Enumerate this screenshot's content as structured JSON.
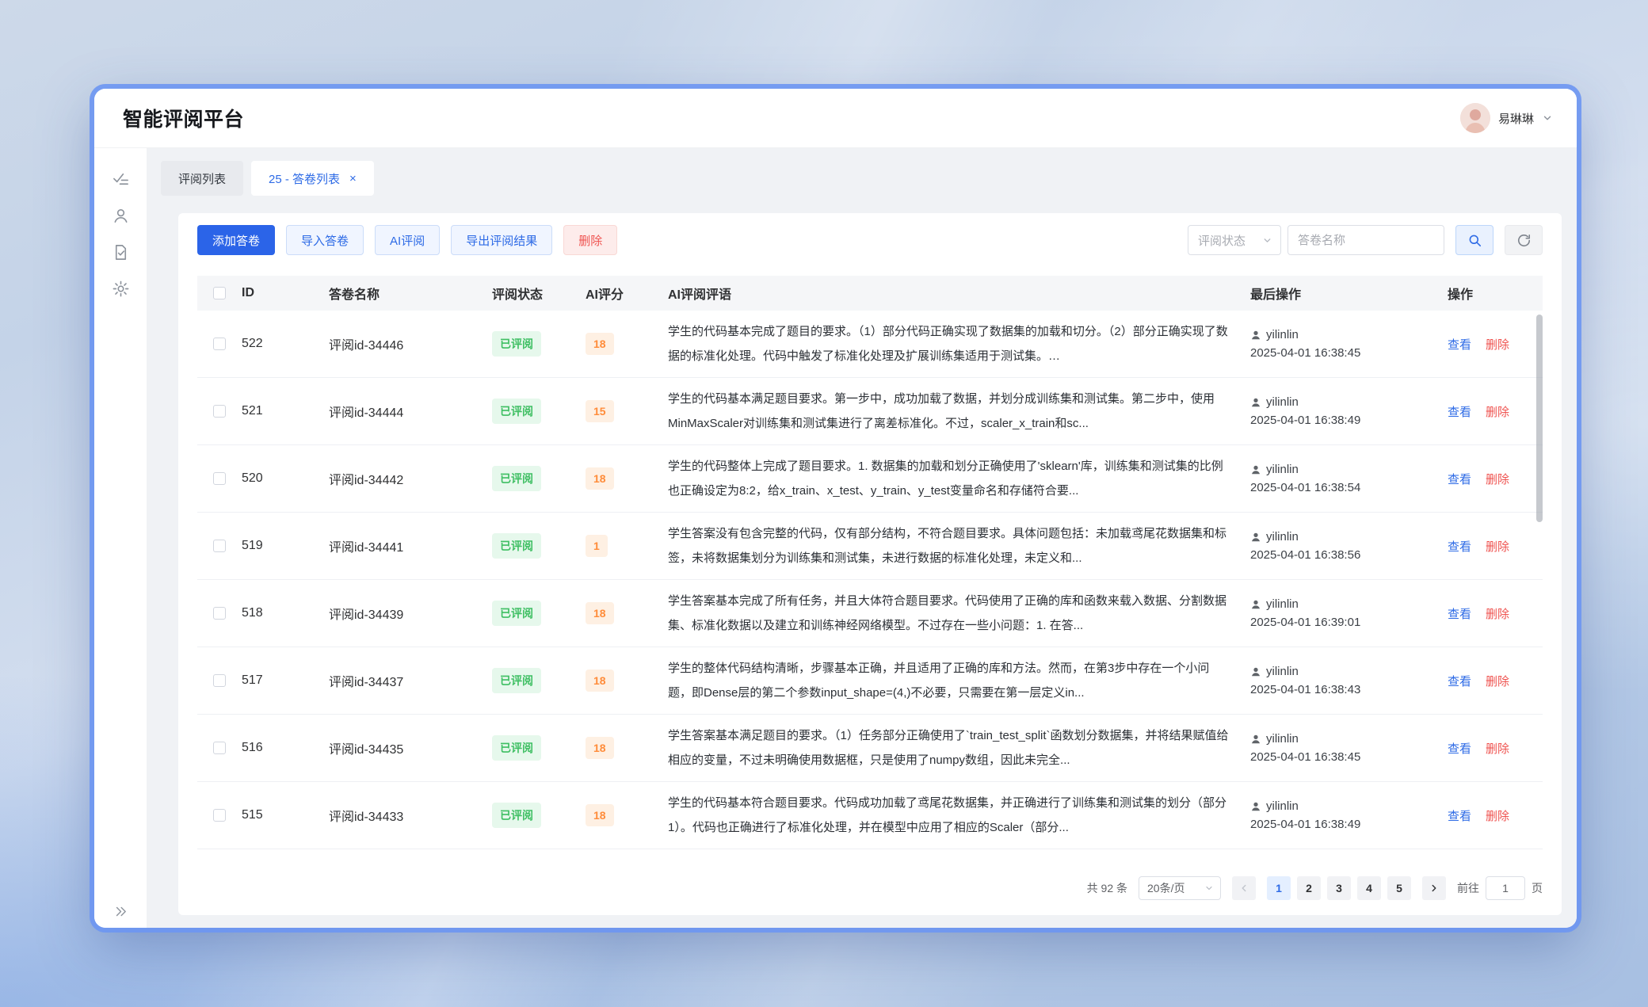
{
  "app": {
    "title": "智能评阅平台"
  },
  "user": {
    "name": "易琳琳",
    "avatar_icon": "person-avatar"
  },
  "sidebar": {
    "icons": [
      "review-checklist-icon",
      "user-icon",
      "document-check-icon",
      "settings-gear-icon"
    ],
    "collapse_icon": "double-chevron-right-icon"
  },
  "tabs": [
    {
      "label": "评阅列表",
      "active": false
    },
    {
      "label": "25 - 答卷列表",
      "active": true,
      "close_icon": "×"
    }
  ],
  "toolbar": {
    "buttons": [
      {
        "label": "添加答卷",
        "type": "primary"
      },
      {
        "label": "导入答卷",
        "type": "plain"
      },
      {
        "label": "AI评阅",
        "type": "plain"
      },
      {
        "label": "导出评阅结果",
        "type": "plain"
      },
      {
        "label": "删除",
        "type": "danger"
      }
    ],
    "status_filter_placeholder": "评阅状态",
    "search_placeholder": "答卷名称",
    "search_icon": "magnifier-icon",
    "refresh_icon": "refresh-icon"
  },
  "table": {
    "columns": [
      "ID",
      "答卷名称",
      "评阅状态",
      "AI评分",
      "AI评阅评语",
      "最后操作",
      "操作"
    ],
    "action_view_label": "查看",
    "action_delete_label": "删除",
    "rows": [
      {
        "id": "522",
        "name": "评阅id-34446",
        "status": "已评阅",
        "score": "18",
        "comment": "学生的代码基本完成了题目的要求。（1）部分代码正确实现了数据集的加载和切分。（2）部分正确实现了数据的标准化处理。代码中触发了标准化处理及扩展训练集适用于测试集。…",
        "operator": "yilinlin",
        "time": "2025-04-01 16:38:45"
      },
      {
        "id": "521",
        "name": "评阅id-34444",
        "status": "已评阅",
        "score": "15",
        "comment": "学生的代码基本满足题目要求。第一步中，成功加载了数据，并划分成训练集和测试集。第二步中，使用MinMaxScaler对训练集和测试集进行了离差标准化。不过，scaler_x_train和sc...",
        "operator": "yilinlin",
        "time": "2025-04-01 16:38:49"
      },
      {
        "id": "520",
        "name": "评阅id-34442",
        "status": "已评阅",
        "score": "18",
        "comment": "学生的代码整体上完成了题目要求。1. 数据集的加载和划分正确使用了'sklearn'库，训练集和测试集的比例也正确设定为8:2，给x_train、x_test、y_train、y_test变量命名和存储符合要...",
        "operator": "yilinlin",
        "time": "2025-04-01 16:38:54"
      },
      {
        "id": "519",
        "name": "评阅id-34441",
        "status": "已评阅",
        "score": "1",
        "comment": "学生答案没有包含完整的代码，仅有部分结构，不符合题目要求。具体问题包括：未加载鸢尾花数据集和标签，未将数据集划分为训练集和测试集，未进行数据的标准化处理，未定义和...",
        "operator": "yilinlin",
        "time": "2025-04-01 16:38:56"
      },
      {
        "id": "518",
        "name": "评阅id-34439",
        "status": "已评阅",
        "score": "18",
        "comment": "学生答案基本完成了所有任务，并且大体符合题目要求。代码使用了正确的库和函数来载入数据、分割数据集、标准化数据以及建立和训练神经网络模型。不过存在一些小问题：1. 在答...",
        "operator": "yilinlin",
        "time": "2025-04-01 16:39:01"
      },
      {
        "id": "517",
        "name": "评阅id-34437",
        "status": "已评阅",
        "score": "18",
        "comment": "学生的整体代码结构清晰，步骤基本正确，并且适用了正确的库和方法。然而，在第3步中存在一个小问题，即Dense层的第二个参数input_shape=(4,)不必要，只需要在第一层定义in...",
        "operator": "yilinlin",
        "time": "2025-04-01 16:38:43"
      },
      {
        "id": "516",
        "name": "评阅id-34435",
        "status": "已评阅",
        "score": "18",
        "comment": "学生答案基本满足题目的要求。（1）任务部分正确使用了`train_test_split`函数划分数据集，并将结果赋值给相应的变量，不过未明确使用数据框，只是使用了numpy数组，因此未完全...",
        "operator": "yilinlin",
        "time": "2025-04-01 16:38:45"
      },
      {
        "id": "515",
        "name": "评阅id-34433",
        "status": "已评阅",
        "score": "18",
        "comment": "学生的代码基本符合题目要求。代码成功加载了鸢尾花数据集，并正确进行了训练集和测试集的划分（部分1）。代码也正确进行了标准化处理，并在模型中应用了相应的Scaler（部分...",
        "operator": "yilinlin",
        "time": "2025-04-01 16:38:49"
      }
    ]
  },
  "pagination": {
    "total": "共 92 条",
    "page_size": "20条/页",
    "pages": [
      "1",
      "2",
      "3",
      "4",
      "5"
    ],
    "active_page": "1",
    "goto_label": "前往",
    "goto_value": "1",
    "goto_suffix": "页"
  },
  "colors": {
    "primary_blue": "#2b64e8",
    "link_blue": "#2e6be6",
    "danger_red": "#ef5350",
    "status_green": "#3fbf63",
    "score_orange": "#ff8c3a"
  }
}
